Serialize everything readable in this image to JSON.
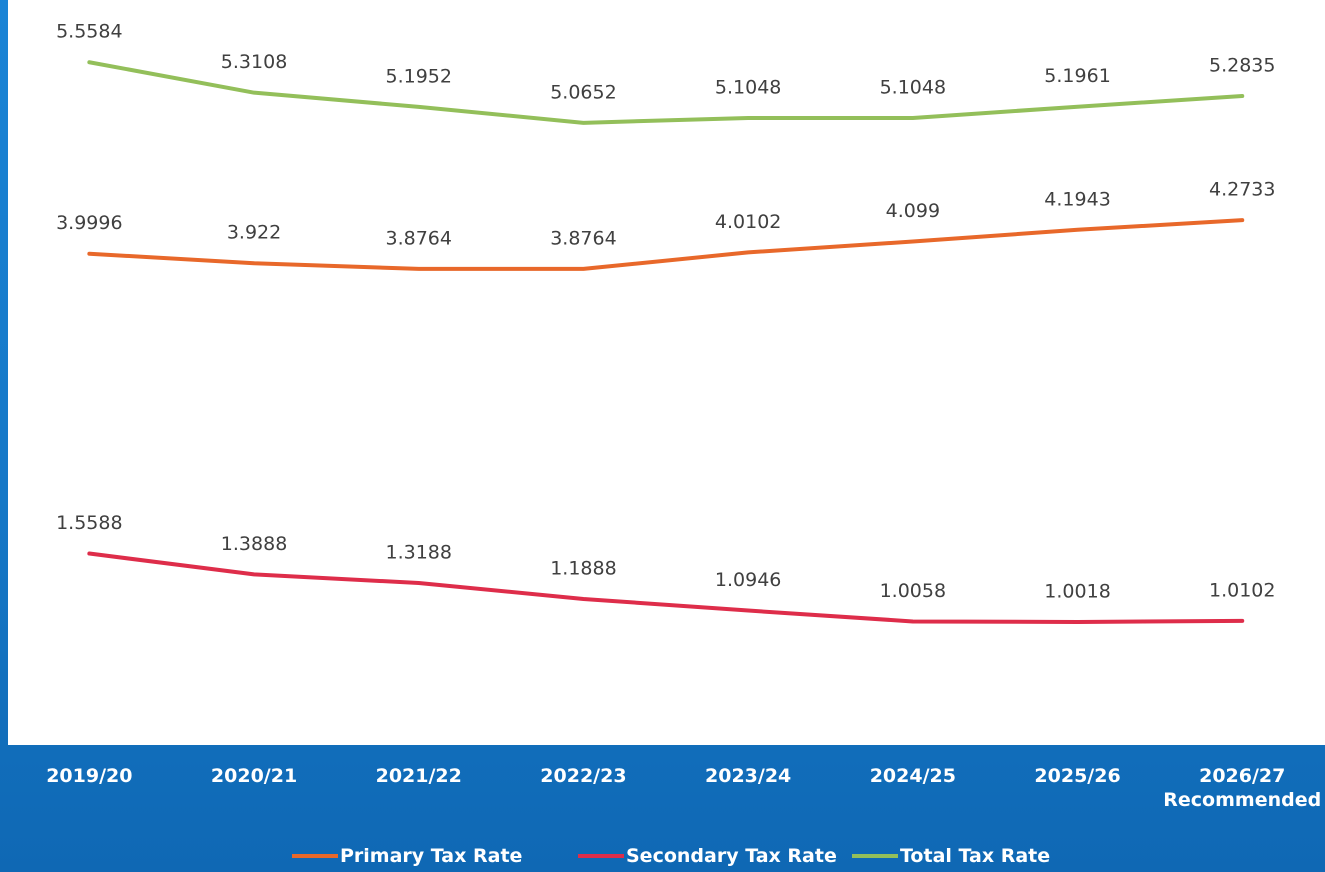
{
  "chart_data": {
    "type": "line",
    "categories": [
      "2019/20",
      "2020/21",
      "2021/22",
      "2022/23",
      "2023/24",
      "2024/25",
      "2025/26",
      "2026/27\nRecommended"
    ],
    "series": [
      {
        "name": "Primary Tax Rate",
        "color": "#e8682a",
        "values": [
          3.9996,
          3.922,
          3.8764,
          3.8764,
          4.0102,
          4.099,
          4.1943,
          4.2733
        ]
      },
      {
        "name": "Secondary Tax Rate",
        "color": "#de2d4a",
        "values": [
          1.5588,
          1.3888,
          1.3188,
          1.1888,
          1.0946,
          1.0058,
          1.0018,
          1.0102
        ]
      },
      {
        "name": "Total Tax Rate",
        "color": "#93bf5a",
        "values": [
          5.5584,
          5.3108,
          5.1952,
          5.0652,
          5.1048,
          5.1048,
          5.1961,
          5.2835
        ]
      }
    ],
    "ylim": [
      0,
      6
    ],
    "grid": false
  }
}
